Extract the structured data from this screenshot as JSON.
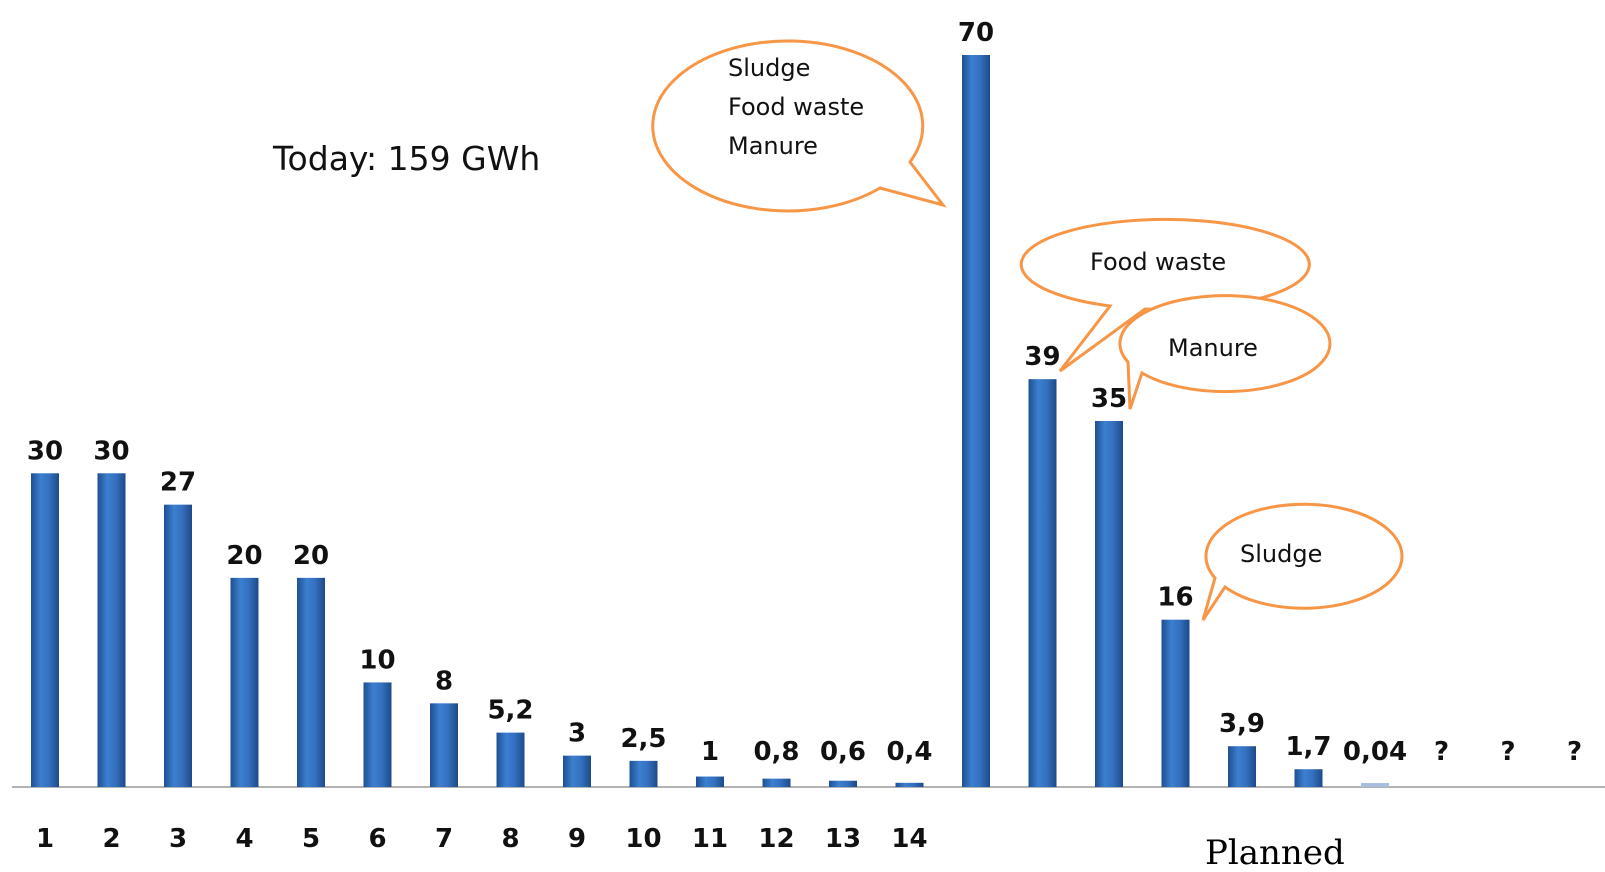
{
  "chart_data": {
    "type": "bar",
    "title": "",
    "xlabel": "",
    "ylabel": "",
    "ylim": [
      0,
      70
    ],
    "grid": false,
    "legend": "none",
    "bar_color": "#2e67b1",
    "bars": [
      {
        "category": "1",
        "value": 30,
        "label": "30"
      },
      {
        "category": "2",
        "value": 30,
        "label": "30"
      },
      {
        "category": "3",
        "value": 27,
        "label": "27"
      },
      {
        "category": "4",
        "value": 20,
        "label": "20"
      },
      {
        "category": "5",
        "value": 20,
        "label": "20"
      },
      {
        "category": "6",
        "value": 10,
        "label": "10"
      },
      {
        "category": "7",
        "value": 8,
        "label": "8"
      },
      {
        "category": "8",
        "value": 5.2,
        "label": "5,2"
      },
      {
        "category": "9",
        "value": 3,
        "label": "3"
      },
      {
        "category": "10",
        "value": 2.5,
        "label": "2,5"
      },
      {
        "category": "11",
        "value": 1,
        "label": "1"
      },
      {
        "category": "12",
        "value": 0.8,
        "label": "0,8"
      },
      {
        "category": "13",
        "value": 0.6,
        "label": "0,6"
      },
      {
        "category": "14",
        "value": 0.4,
        "label": "0,4"
      },
      {
        "category": "",
        "value": 70,
        "label": "70"
      },
      {
        "category": "",
        "value": 39,
        "label": "39"
      },
      {
        "category": "",
        "value": 35,
        "label": "35"
      },
      {
        "category": "",
        "value": 16,
        "label": "16"
      },
      {
        "category": "",
        "value": 3.9,
        "label": "3,9"
      },
      {
        "category": "",
        "value": 1.7,
        "label": "1,7"
      },
      {
        "category": "",
        "value": 0.04,
        "label": "0,04"
      },
      {
        "category": "",
        "value": null,
        "label": "?"
      },
      {
        "category": "",
        "value": null,
        "label": "?"
      },
      {
        "category": "",
        "value": null,
        "label": "?"
      }
    ],
    "annotations": {
      "today": "Today: 159 GWh",
      "planned": "Planned",
      "bubble_big": [
        "Sludge",
        "Food waste",
        "Manure"
      ],
      "bubble_food": "Food waste",
      "bubble_manure": "Manure",
      "bubble_sludge": "Sludge"
    }
  }
}
